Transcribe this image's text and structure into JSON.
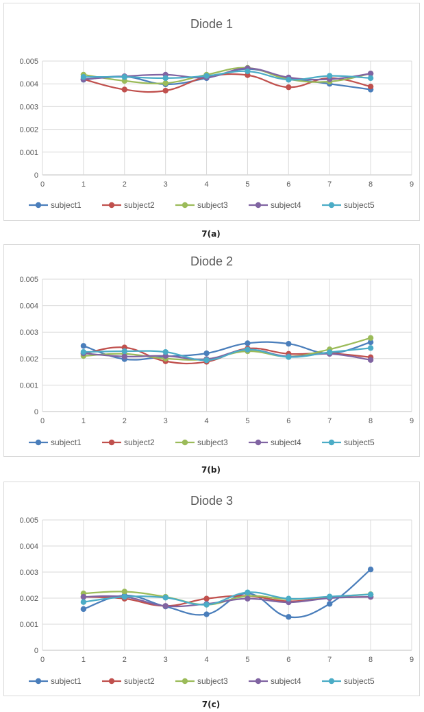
{
  "colors": {
    "subject1": "#4a7ebb",
    "subject2": "#c0504d",
    "subject3": "#9bbb59",
    "subject4": "#8064a2",
    "subject5": "#4bacc6"
  },
  "chart_data": [
    {
      "type": "line",
      "title": "Diode 1",
      "caption": "7(a)",
      "xlim": [
        0,
        9
      ],
      "ylim": [
        0,
        0.005
      ],
      "x_ticks": [
        "0",
        "1",
        "2",
        "3",
        "4",
        "5",
        "6",
        "7",
        "8",
        "9"
      ],
      "y_ticks": [
        "0",
        "0.001",
        "0.002",
        "0.003",
        "0.004",
        "0.005"
      ],
      "grid": true,
      "legend_position": "bottom",
      "x": [
        1,
        2,
        3,
        4,
        5,
        6,
        7,
        8
      ],
      "series": [
        {
          "name": "subject1",
          "values": [
            0.00418,
            0.00432,
            0.00398,
            0.00425,
            0.00465,
            0.00425,
            0.004,
            0.00375
          ]
        },
        {
          "name": "subject2",
          "values": [
            0.0042,
            0.00375,
            0.0037,
            0.0043,
            0.00438,
            0.00385,
            0.00425,
            0.00388
          ]
        },
        {
          "name": "subject3",
          "values": [
            0.0044,
            0.00413,
            0.00403,
            0.0044,
            0.0047,
            0.0042,
            0.0041,
            0.00445
          ]
        },
        {
          "name": "subject4",
          "values": [
            0.0042,
            0.00433,
            0.0044,
            0.00428,
            0.00468,
            0.00428,
            0.0042,
            0.00445
          ]
        },
        {
          "name": "subject5",
          "values": [
            0.0043,
            0.0043,
            0.00425,
            0.00435,
            0.00455,
            0.00418,
            0.00435,
            0.00425
          ]
        }
      ]
    },
    {
      "type": "line",
      "title": "Diode 2",
      "caption": "7(b)",
      "xlim": [
        0,
        9
      ],
      "ylim": [
        0,
        0.005
      ],
      "x_ticks": [
        "0",
        "1",
        "2",
        "3",
        "4",
        "5",
        "6",
        "7",
        "8",
        "9"
      ],
      "y_ticks": [
        "0",
        "0.001",
        "0.002",
        "0.003",
        "0.004",
        "0.005"
      ],
      "grid": true,
      "legend_position": "bottom",
      "x": [
        1,
        2,
        3,
        4,
        5,
        6,
        7,
        8
      ],
      "series": [
        {
          "name": "subject1",
          "values": [
            0.00248,
            0.00198,
            0.00208,
            0.0022,
            0.00258,
            0.00256,
            0.0022,
            0.00262
          ]
        },
        {
          "name": "subject2",
          "values": [
            0.00218,
            0.00242,
            0.0019,
            0.00188,
            0.00238,
            0.00218,
            0.0022,
            0.00205
          ]
        },
        {
          "name": "subject3",
          "values": [
            0.0021,
            0.00218,
            0.002,
            0.00198,
            0.00228,
            0.00208,
            0.00235,
            0.00278
          ]
        },
        {
          "name": "subject4",
          "values": [
            0.0022,
            0.00208,
            0.0021,
            0.00198,
            0.00234,
            0.00208,
            0.00218,
            0.00195
          ]
        },
        {
          "name": "subject5",
          "values": [
            0.00225,
            0.00228,
            0.00225,
            0.00194,
            0.00234,
            0.00206,
            0.00224,
            0.0024
          ]
        }
      ]
    },
    {
      "type": "line",
      "title": "Diode 3",
      "caption": "7(c)",
      "xlim": [
        0,
        9
      ],
      "ylim": [
        0,
        0.005
      ],
      "x_ticks": [
        "0",
        "1",
        "2",
        "3",
        "4",
        "5",
        "6",
        "7",
        "8",
        "9"
      ],
      "y_ticks": [
        "0",
        "0.001",
        "0.002",
        "0.003",
        "0.004",
        "0.005"
      ],
      "grid": true,
      "legend_position": "bottom",
      "x": [
        1,
        2,
        3,
        4,
        5,
        6,
        7,
        8
      ],
      "series": [
        {
          "name": "subject1",
          "values": [
            0.00158,
            0.0021,
            0.00168,
            0.00138,
            0.00218,
            0.00128,
            0.00178,
            0.0031
          ]
        },
        {
          "name": "subject2",
          "values": [
            0.00205,
            0.00198,
            0.0017,
            0.00198,
            0.00208,
            0.00188,
            0.00202,
            0.00205
          ]
        },
        {
          "name": "subject3",
          "values": [
            0.00218,
            0.00225,
            0.00205,
            0.00175,
            0.00208,
            0.00196,
            0.00205,
            0.00215
          ]
        },
        {
          "name": "subject4",
          "values": [
            0.00205,
            0.00205,
            0.0017,
            0.00178,
            0.00198,
            0.00184,
            0.002,
            0.00205
          ]
        },
        {
          "name": "subject5",
          "values": [
            0.00185,
            0.00205,
            0.00202,
            0.00175,
            0.00222,
            0.00198,
            0.00206,
            0.00214
          ]
        }
      ]
    }
  ]
}
